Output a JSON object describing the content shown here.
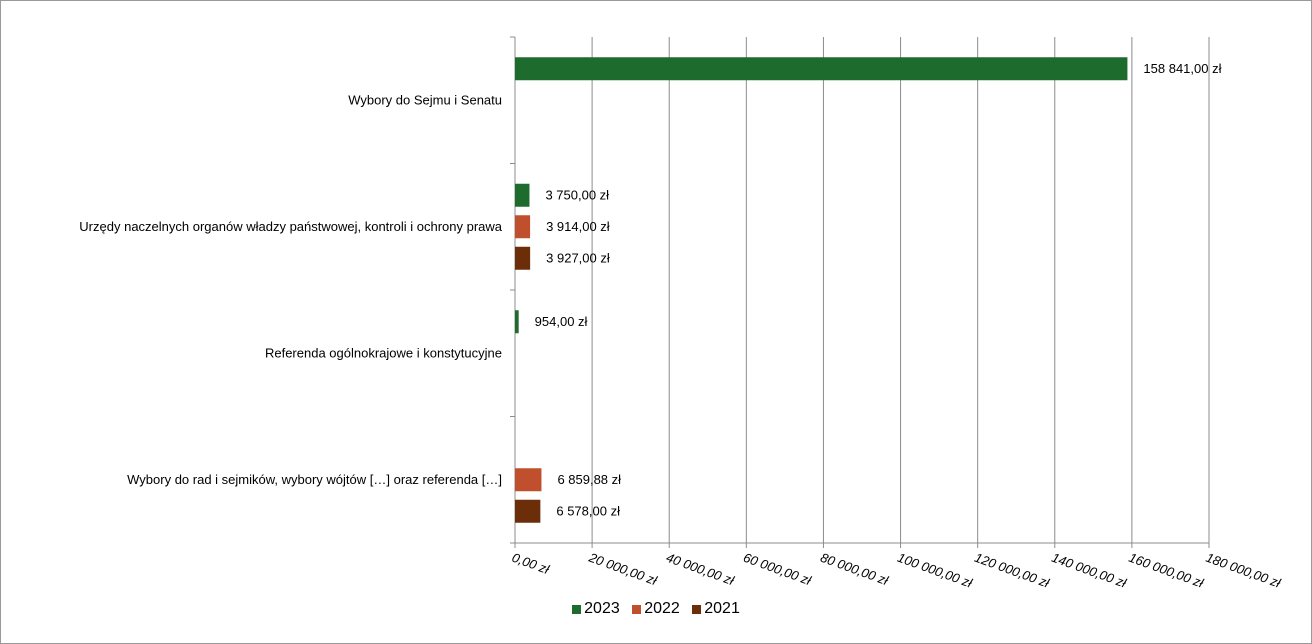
{
  "chart_data": {
    "type": "bar",
    "orientation": "horizontal",
    "categories": [
      "Wybory do Sejmu i Senatu",
      "Urzędy naczelnych organów władzy państwowej, kontroli i ochrony prawa",
      "Referenda ogólnokrajowe i konstytucyjne",
      "Wybory do rad i sejmików, wybory wójtów […] oraz referenda […]"
    ],
    "series": [
      {
        "name": "2023",
        "color": "#1e6b2e",
        "values": [
          158841.0,
          3750.0,
          954.0,
          null
        ],
        "labels": [
          "158 841,00 zł",
          "3 750,00 zł",
          "954,00 zł",
          ""
        ]
      },
      {
        "name": "2022",
        "color": "#c0502d",
        "values": [
          null,
          3914.0,
          null,
          6859.88
        ],
        "labels": [
          "",
          "3 914,00 zł",
          "",
          "6 859,88 zł"
        ]
      },
      {
        "name": "2021",
        "color": "#6b2e08",
        "values": [
          null,
          3927.0,
          null,
          6578.0
        ],
        "labels": [
          "",
          "3 927,00 zł",
          "",
          "6 578,00 zł"
        ]
      }
    ],
    "xlim": [
      0,
      180000
    ],
    "x_ticks": [
      0,
      20000,
      40000,
      60000,
      80000,
      100000,
      120000,
      140000,
      160000,
      180000
    ],
    "x_tick_labels": [
      "0,00 zł",
      "20 000,00 zł",
      "40 000,00 zł",
      "60 000,00 zł",
      "80 000,00 zł",
      "100 000,00 zł",
      "120 000,00 zł",
      "140 000,00 zł",
      "160 000,00 zł",
      "180 000,00 zł"
    ],
    "grid": true,
    "legend_position": "bottom"
  },
  "legend": [
    {
      "label": "2023",
      "color": "#1e6b2e"
    },
    {
      "label": "2022",
      "color": "#c0502d"
    },
    {
      "label": "2021",
      "color": "#6b2e08"
    }
  ]
}
